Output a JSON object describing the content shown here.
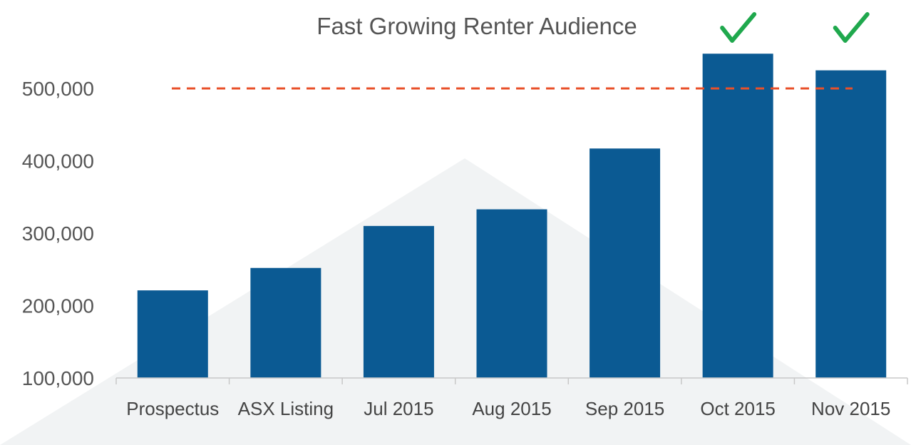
{
  "chart_data": {
    "type": "bar",
    "title": "Fast Growing Renter Audience",
    "xlabel": "",
    "ylabel": "",
    "categories": [
      "Prospectus",
      "ASX Listing",
      "Jul 2015",
      "Aug 2015",
      "Sep 2015",
      "Oct 2015",
      "Nov 2015"
    ],
    "values": [
      221000,
      252000,
      310000,
      333000,
      417000,
      548000,
      525000
    ],
    "ylim": [
      100000,
      560000
    ],
    "yticks": [
      100000,
      200000,
      300000,
      400000,
      500000
    ],
    "ytick_labels": [
      "100,000",
      "200,000",
      "300,000",
      "400,000",
      "500,000"
    ],
    "bar_color": "#0b5a93",
    "grid": false,
    "reference_line": {
      "value": 500000,
      "style": "dashed",
      "color": "#e8502a"
    },
    "checkmarks": {
      "categories": [
        "Oct 2015",
        "Nov 2015"
      ],
      "glyph": "✓",
      "color": "#1fa84d"
    },
    "background_shape_color": "#f1f3f4"
  }
}
